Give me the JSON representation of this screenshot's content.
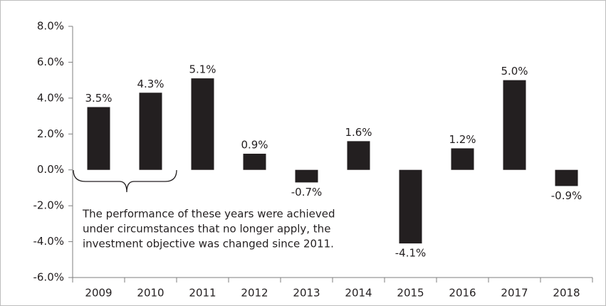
{
  "chart_data": {
    "type": "bar",
    "categories": [
      "2009",
      "2010",
      "2011",
      "2012",
      "2013",
      "2014",
      "2015",
      "2016",
      "2017",
      "2018"
    ],
    "values": [
      3.5,
      4.3,
      5.1,
      0.9,
      -0.7,
      1.6,
      -4.1,
      1.2,
      5.0,
      -0.9
    ],
    "value_labels": [
      "3.5%",
      "4.3%",
      "5.1%",
      "0.9%",
      "-0.7%",
      "1.6%",
      "-4.1%",
      "1.2%",
      "5.0%",
      "-0.9%"
    ],
    "color": "#231f20",
    "ylim": [
      -6,
      8
    ],
    "yticks": [
      {
        "value": -6,
        "label": "-6.0%"
      },
      {
        "value": -4,
        "label": "-4.0%"
      },
      {
        "value": -2,
        "label": "-2.0%"
      },
      {
        "value": 0,
        "label": "0.0%"
      },
      {
        "value": 2,
        "label": "2.0%"
      },
      {
        "value": 4,
        "label": "4.0%"
      },
      {
        "value": 6,
        "label": "6.0%"
      },
      {
        "value": 8,
        "label": "8.0%"
      }
    ],
    "grid": false,
    "annotation": [
      "The performance of these years were achieved",
      "under circumstances that no longer apply, the",
      "investment objective was changed since 2011."
    ]
  }
}
